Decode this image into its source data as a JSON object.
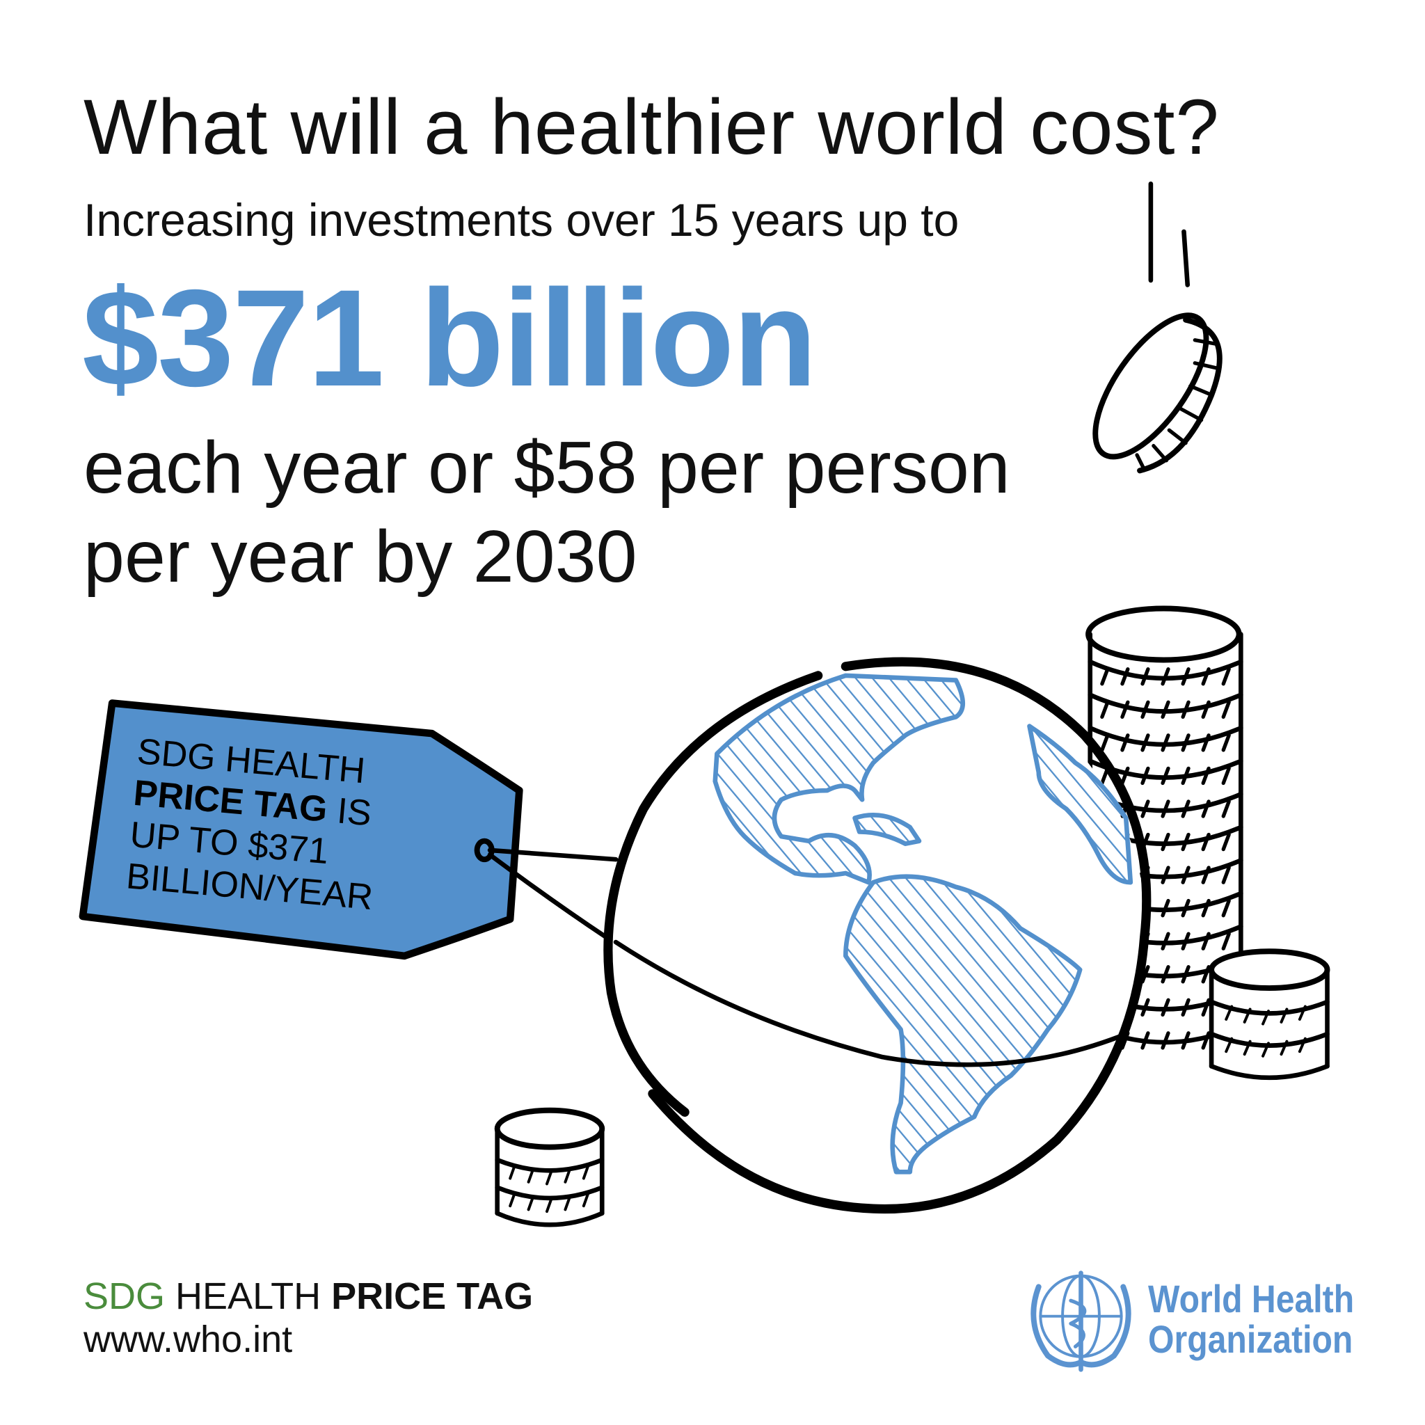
{
  "headline": {
    "title": "What will a healthier world cost?",
    "subtitle": "Increasing investments over 15 years up to",
    "amount": "$371 billion",
    "line1": "each year or $58 per person",
    "line2": "per year by 2030"
  },
  "price_tag": {
    "line1": "SDG HEALTH",
    "line2_bold": "PRICE TAG",
    "line2_rest": " IS",
    "line3": "UP TO $371",
    "line4": "BILLION/YEAR"
  },
  "footer": {
    "sdg": "SDG",
    "health": " HEALTH ",
    "price_tag": "PRICE TAG",
    "url": "www.who.int"
  },
  "logo": {
    "line1": "World Health",
    "line2": "Organization",
    "icon": "who-emblem-icon"
  },
  "colors": {
    "accent": "#5390cc",
    "green": "#4a8c3c",
    "text": "#111111"
  }
}
